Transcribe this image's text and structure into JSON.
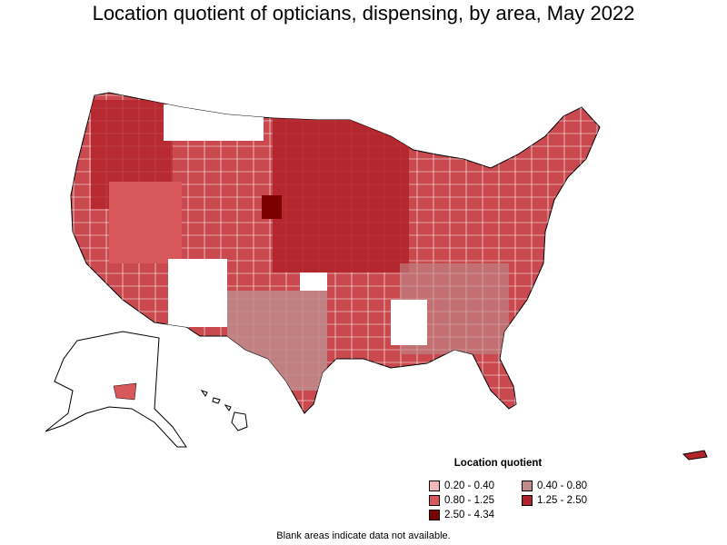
{
  "title": "Location quotient of opticians, dispensing, by area, May 2022",
  "legend": {
    "title": "Location quotient",
    "items": [
      {
        "label": "0.20 - 0.40",
        "color": "#f0b8b8"
      },
      {
        "label": "0.40 - 0.80",
        "color": "#c08a8a"
      },
      {
        "label": "0.80 - 1.25",
        "color": "#d9585c"
      },
      {
        "label": "1.25 - 2.50",
        "color": "#b3232a"
      },
      {
        "label": "2.50 - 4.34",
        "color": "#7a0000"
      }
    ]
  },
  "footnote": "Blank areas indicate data not available."
}
